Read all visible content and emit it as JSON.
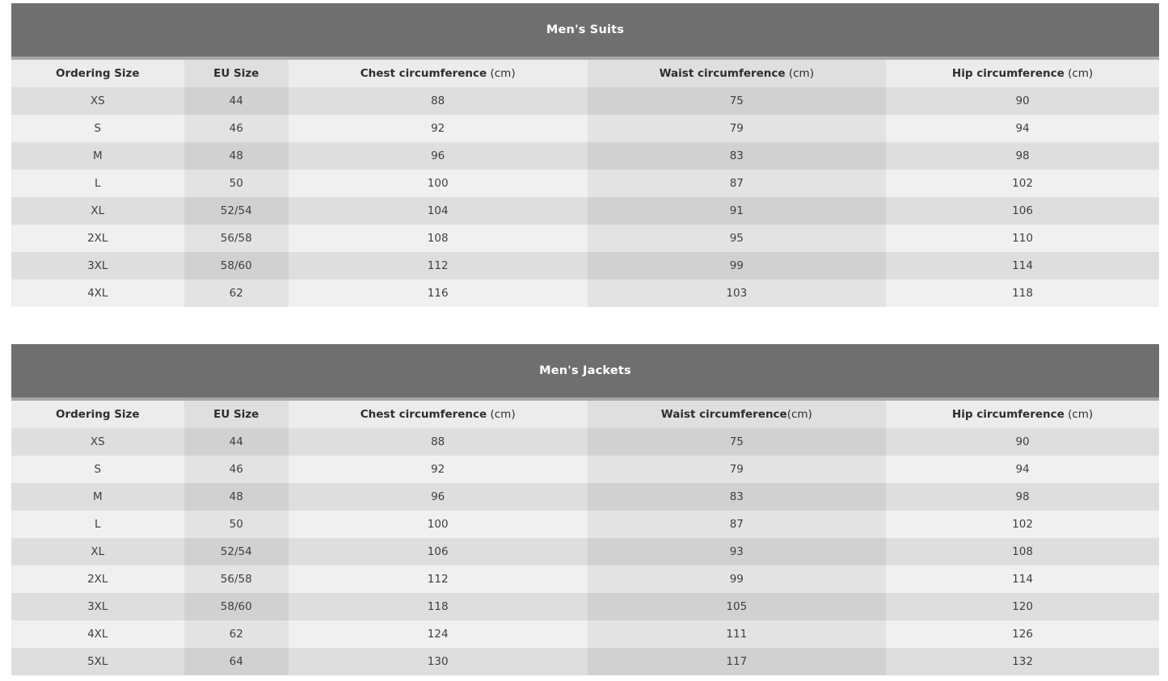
{
  "page": {
    "background": "#ffffff"
  },
  "colors": {
    "title_bar_bg": "#6f6f6f",
    "title_bar_separator": "#a7a7a7",
    "title_text": "#ffffff",
    "header_bg": "#ececec",
    "header_bg_tinted_col": "#dfdfdf",
    "row_dark": "#dedede",
    "row_dark_tinted_col": "#d1d1d1",
    "row_light": "#f0f0f0",
    "row_light_tinted_col": "#e3e3e3",
    "cell_text": "#3f3f3f",
    "header_text": "#2e2e2e"
  },
  "tables": [
    {
      "title": "Men's Suits",
      "columns": [
        {
          "label": "Ordering Size",
          "unit": ""
        },
        {
          "label": "EU Size",
          "unit": ""
        },
        {
          "label": "Chest circumference",
          "unit": " (cm)"
        },
        {
          "label": "Waist circumference",
          "unit": " (cm)"
        },
        {
          "label": "Hip circumference",
          "unit": " (cm)"
        }
      ],
      "rows": [
        [
          "XS",
          "44",
          "88",
          "75",
          "90"
        ],
        [
          "S",
          "46",
          "92",
          "79",
          "94"
        ],
        [
          "M",
          "48",
          "96",
          "83",
          "98"
        ],
        [
          "L",
          "50",
          "100",
          "87",
          "102"
        ],
        [
          "XL",
          "52/54",
          "104",
          "91",
          "106"
        ],
        [
          "2XL",
          "56/58",
          "108",
          "95",
          "110"
        ],
        [
          "3XL",
          "58/60",
          "112",
          "99",
          "114"
        ],
        [
          "4XL",
          "62",
          "116",
          "103",
          "118"
        ]
      ]
    },
    {
      "title": "Men's Jackets",
      "columns": [
        {
          "label": "Ordering Size",
          "unit": ""
        },
        {
          "label": "EU Size",
          "unit": ""
        },
        {
          "label": "Chest circumference",
          "unit": " (cm)"
        },
        {
          "label": "Waist circumference",
          "unit": "(cm)"
        },
        {
          "label": "Hip circumference",
          "unit": " (cm)"
        }
      ],
      "rows": [
        [
          "XS",
          "44",
          "88",
          "75",
          "90"
        ],
        [
          "S",
          "46",
          "92",
          "79",
          "94"
        ],
        [
          "M",
          "48",
          "96",
          "83",
          "98"
        ],
        [
          "L",
          "50",
          "100",
          "87",
          "102"
        ],
        [
          "XL",
          "52/54",
          "106",
          "93",
          "108"
        ],
        [
          "2XL",
          "56/58",
          "112",
          "99",
          "114"
        ],
        [
          "3XL",
          "58/60",
          "118",
          "105",
          "120"
        ],
        [
          "4XL",
          "62",
          "124",
          "111",
          "126"
        ],
        [
          "5XL",
          "64",
          "130",
          "117",
          "132"
        ]
      ]
    }
  ]
}
